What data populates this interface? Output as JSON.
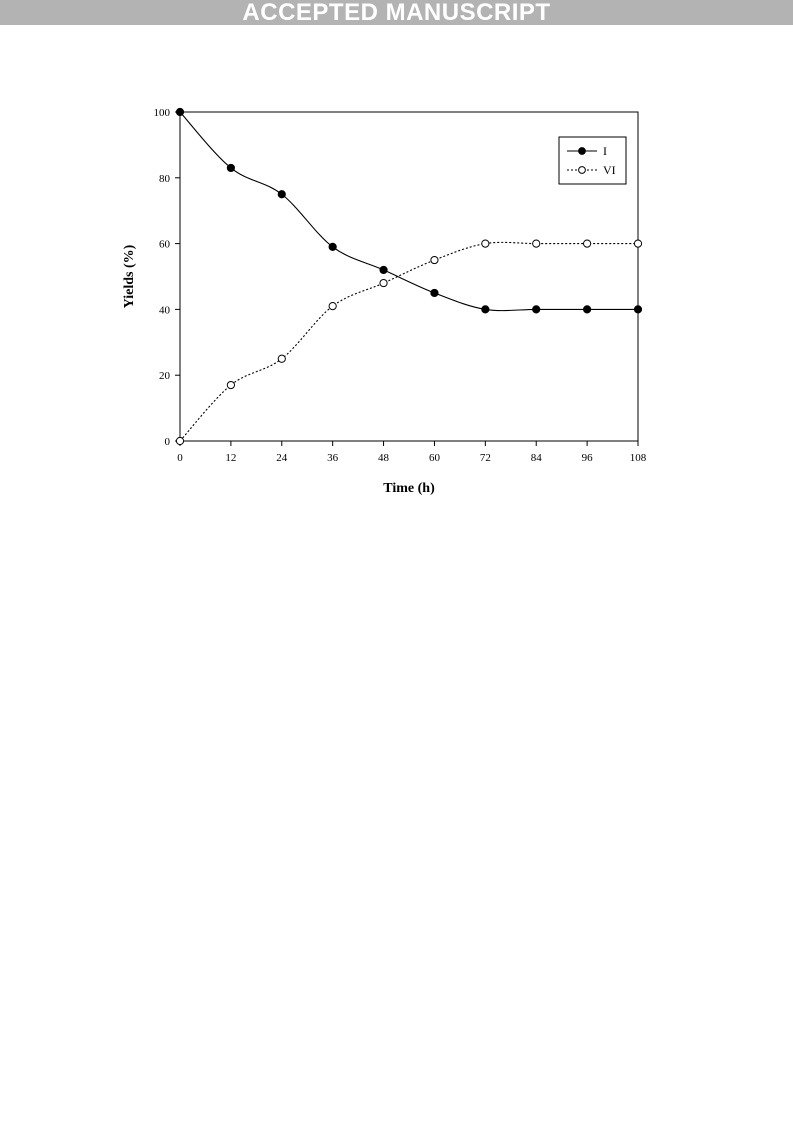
{
  "header": {
    "banner_text": "ACCEPTED MANUSCRIPT",
    "banner_color": "#b3b3b3"
  },
  "chart_data": {
    "type": "line",
    "title": "",
    "xlabel": "Time (h)",
    "ylabel": "Yields (%)",
    "x": [
      0,
      12,
      24,
      36,
      48,
      60,
      72,
      84,
      96,
      108
    ],
    "xlim": [
      0,
      108
    ],
    "ylim": [
      0,
      100
    ],
    "xticks": [
      "0",
      "12",
      "24",
      "36",
      "48",
      "60",
      "72",
      "84",
      "96",
      "108"
    ],
    "yticks": [
      "0",
      "20",
      "40",
      "60",
      "80",
      "100"
    ],
    "grid": false,
    "legend_position": "top-right",
    "series": [
      {
        "name": "I",
        "values": [
          100,
          83,
          75,
          59,
          52,
          45,
          40,
          40,
          40,
          40
        ],
        "marker": "filled-circle",
        "line_style": "solid",
        "color": "#000000"
      },
      {
        "name": "VI",
        "values": [
          0,
          17,
          25,
          41,
          48,
          55,
          60,
          60,
          60,
          60
        ],
        "marker": "open-circle",
        "line_style": "dotted",
        "color": "#000000"
      }
    ]
  }
}
